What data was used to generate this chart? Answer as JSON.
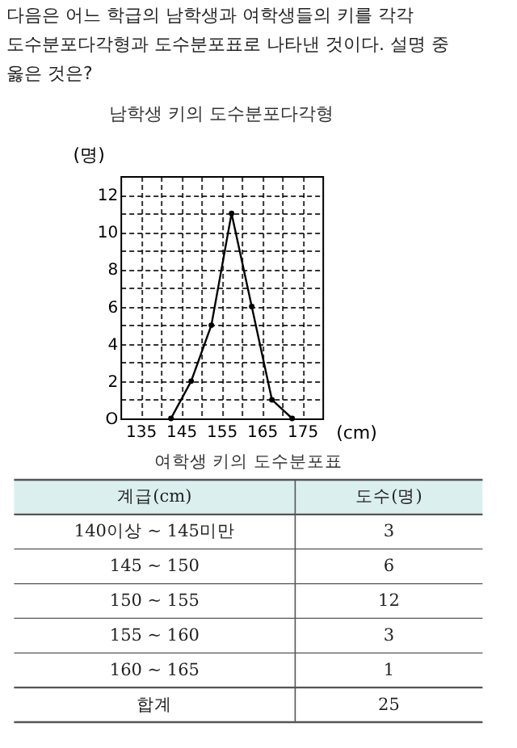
{
  "chart_data": [
    {
      "type": "line",
      "title": "남학생 키의 도수분포다각형",
      "annotations": [
        "다음은 어느 학급의 남학생과 여학생들의 키를 각각 도수분포다각형과 도수분포표로 나타낸 것이다. 설명 중 옳은 것은?"
      ],
      "x": [
        142.5,
        147.5,
        152.5,
        157.5,
        162.5,
        167.5,
        172.5
      ],
      "series": [
        {
          "color": "#000000",
          "values": [
            0,
            2,
            5,
            11,
            6,
            1,
            0
          ]
        }
      ],
      "xlabel": "(cm)",
      "ylabel": "(명)",
      "xlim": [
        130,
        180
      ],
      "ylim": [
        0,
        13
      ],
      "xticks": [
        135,
        {
          "value": 140,
          "label": null
        },
        145,
        {
          "value": 150,
          "label": null
        },
        155,
        {
          "value": 160,
          "label": null
        },
        165,
        {
          "value": 170,
          "label": null
        },
        175
      ],
      "yticks": [
        {
          "value": 0,
          "label": "O"
        },
        {
          "value": 1,
          "label": null
        },
        2,
        {
          "value": 3,
          "label": null
        },
        4,
        {
          "value": 5,
          "label": null
        },
        6,
        {
          "value": 7,
          "label": null
        },
        8,
        {
          "value": 9,
          "label": null
        },
        10,
        {
          "value": 11,
          "label": null
        },
        12
      ],
      "grid": true,
      "marker": "circle",
      "line_style": "solid"
    },
    {
      "type": "other",
      "title": "여학생 키의 도수분포표",
      "xlabel": "계급(cm)",
      "ylabel": "도수(명)",
      "categories": [
        "140이상 ~ 145미만",
        "145 ~ 150",
        "150 ~ 155",
        "155 ~ 160",
        "160 ~ 165",
        "합계"
      ],
      "values": [
        3,
        6,
        12,
        3,
        1,
        25
      ],
      "data_labels": true
    }
  ]
}
